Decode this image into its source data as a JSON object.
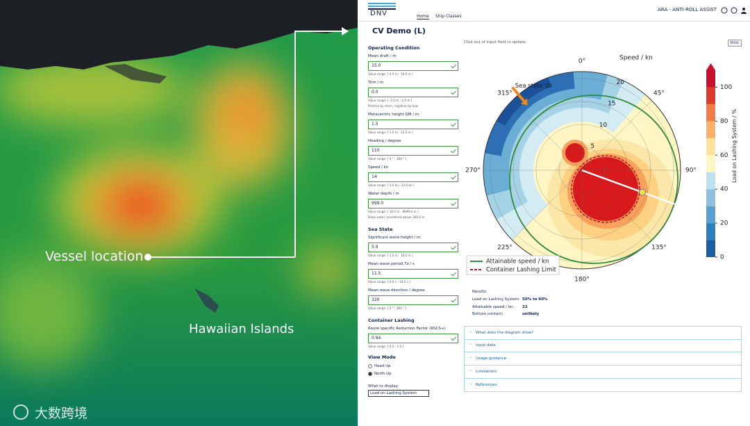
{
  "map": {
    "vessel_label": "Vessel location",
    "islands_label": "Hawaiian Islands",
    "watermark": "大数跨境"
  },
  "header": {
    "logo": "DNV",
    "nav": [
      "Home",
      "Ship Classes"
    ],
    "app_title": "ARA - ANTI-ROLL ASSIST"
  },
  "page_title": "CV Demo (L)",
  "hint": "Click out of input field to update",
  "print_button": "Print",
  "form": {
    "sections": [
      {
        "title": "Operating Condition",
        "fields": [
          {
            "label": "Mean draft / m",
            "value": "15.0",
            "range": "Value range: [ 9.0 m : 16.0 m ]"
          },
          {
            "label": "Trim / m",
            "value": "0.0",
            "range": "Value range: [ -2.0 m : 2.0 m ]",
            "note": "Positive by stern, negative by bow."
          },
          {
            "label": "Metacentric height GM / m",
            "value": "1.5",
            "range": "Value range: [ 1.0 m : 12.0 m ]"
          },
          {
            "label": "Heading / degree",
            "value": "110",
            "range": "Value range: [ 0 ° : 360 ° ]"
          },
          {
            "label": "Speed / kn",
            "value": "14",
            "range": "Value range: [ 3.0 kn : 23.0 kn ]"
          },
          {
            "label": "Water depth / m",
            "value": "999.0",
            "range": "Value range: [ 10.0 m : 9999.0 m ]",
            "note": "Deep water considered above 300.0 m"
          }
        ]
      },
      {
        "title": "Sea State",
        "fields": [
          {
            "label": "Significant wave height / m",
            "value": "5.9",
            "range": "Value range: [ 1.0 m : 10.0 m ]"
          },
          {
            "label": "Mean wave period Tz / s",
            "value": "11.5",
            "range": "Value range: [ 6.0 s : 19.5 s ]"
          },
          {
            "label": "Mean wave direction / degree",
            "value": "320",
            "range": "Value range: [ 0 ° : 360 ° ]"
          }
        ]
      },
      {
        "title": "Container Lashing",
        "fields": [
          {
            "label": "Route specific Reduction Factor (RSCS+)",
            "value": "0.94",
            "range": "Value range: [ 0.5 : 1.0 ]"
          }
        ]
      }
    ],
    "view_mode": {
      "title": "View Mode",
      "options": [
        "Head Up",
        "North Up"
      ],
      "selected": 1
    },
    "display": {
      "title": "What to display",
      "value": "Load on Lashing System"
    }
  },
  "chart_data": {
    "type": "polar-heatmap",
    "thetaticks": [
      {
        "value": 0,
        "label": "0°"
      },
      {
        "value": 45,
        "label": "45°"
      },
      {
        "value": 90,
        "label": "90°"
      },
      {
        "value": 135,
        "label": "135°"
      },
      {
        "value": 180,
        "label": "180°"
      },
      {
        "value": 225,
        "label": "225°"
      },
      {
        "value": 270,
        "label": "270°"
      },
      {
        "value": 315,
        "label": "315°"
      }
    ],
    "rlim": [
      0,
      21.5
    ],
    "rticks": [
      5,
      10,
      15,
      20
    ],
    "r_label": "Speed / kn",
    "annotation": "Sea state dir",
    "legend": [
      {
        "name": "Attainable speed / kn",
        "color": "#2e8b3e"
      },
      {
        "name": "Container Lashing Limit",
        "color": "#c8102e"
      }
    ],
    "colorbar": {
      "label": "Load on Lashing System / %",
      "clim": [
        0,
        110
      ],
      "ticks": [
        0,
        20,
        40,
        60,
        80,
        100
      ]
    }
  },
  "results": {
    "title": "Results:",
    "rows": [
      [
        "Load on Lashing System:",
        "50% to 60%"
      ],
      [
        "Attainable speed / kn:",
        "22"
      ],
      [
        "Bottom contact:",
        "unlikely"
      ]
    ]
  },
  "accordion": [
    "What does the diagram show?",
    "Input data",
    "Usage guidance",
    "Limitations",
    "References"
  ]
}
